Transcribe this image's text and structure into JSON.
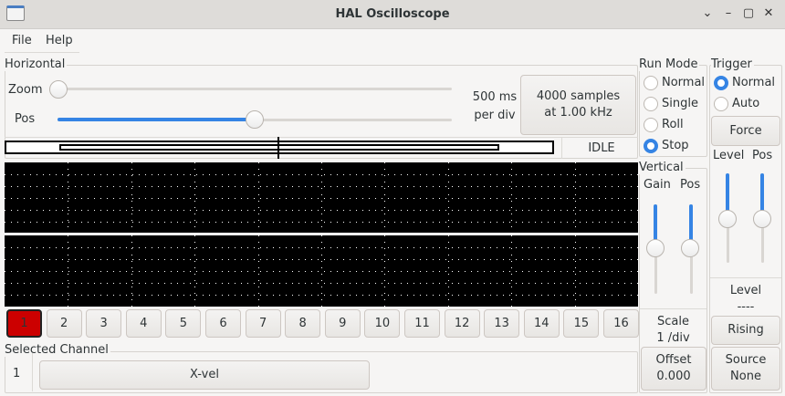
{
  "window": {
    "title": "HAL Oscilloscope",
    "controls": [
      "⌄",
      "–",
      "▢",
      "✕"
    ]
  },
  "menu": [
    "File",
    "Help"
  ],
  "horizontal": {
    "label": "Horizontal",
    "zoom_label": "Zoom",
    "pos_label": "Pos",
    "zoom_value": 0,
    "pos_value": 0.5,
    "scale_line1": "500 ms",
    "scale_line2": "per div",
    "samples_line1": "4000 samples",
    "samples_line2": "at 1.00 kHz",
    "status": "IDLE"
  },
  "run_mode": {
    "label": "Run Mode",
    "options": [
      "Normal",
      "Single",
      "Roll",
      "Stop"
    ],
    "selected": "Stop"
  },
  "vertical": {
    "label": "Vertical",
    "gain_label": "Gain",
    "pos_label": "Pos",
    "scale_label": "Scale",
    "scale_value": "1 /div",
    "offset_label": "Offset",
    "offset_value": "0.000"
  },
  "trigger": {
    "label": "Trigger",
    "options": [
      "Normal",
      "Auto"
    ],
    "selected": "Normal",
    "force": "Force",
    "level_label": "Level",
    "pos_label": "Pos",
    "level_title": "Level",
    "level_value": "----",
    "edge": "Rising",
    "source_label": "Source",
    "source_value": "None"
  },
  "channels": [
    "1",
    "2",
    "3",
    "4",
    "5",
    "6",
    "7",
    "8",
    "9",
    "10",
    "11",
    "12",
    "13",
    "14",
    "15",
    "16"
  ],
  "selected_channel": {
    "label": "Selected Channel",
    "number": "1",
    "name": "X-vel",
    "active_color": "#cc0000"
  }
}
